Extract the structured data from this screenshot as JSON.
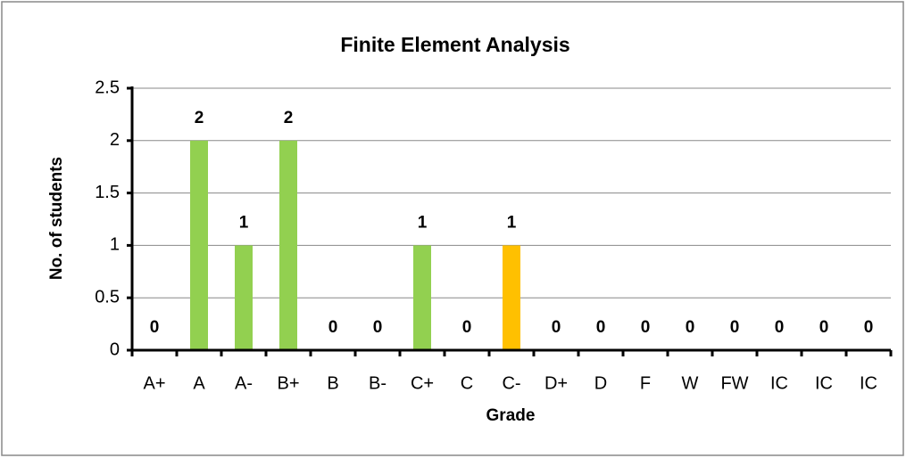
{
  "chart_data": {
    "type": "bar",
    "title": "Finite Element Analysis",
    "x_label": "Grade",
    "y_label": "No. of students",
    "categories": [
      "A+",
      "A",
      "A-",
      "B+",
      "B",
      "B-",
      "C+",
      "C",
      "C-",
      "D+",
      "D",
      "F",
      "W",
      "FW",
      "IC",
      "IC",
      "IC"
    ],
    "values": [
      0,
      2,
      1,
      2,
      0,
      0,
      1,
      0,
      1,
      0,
      0,
      0,
      0,
      0,
      0,
      0,
      0
    ],
    "colors": [
      "#92d050",
      "#92d050",
      "#92d050",
      "#92d050",
      "#92d050",
      "#92d050",
      "#92d050",
      "#92d050",
      "#ffc000",
      "#92d050",
      "#92d050",
      "#92d050",
      "#92d050",
      "#92d050",
      "#92d050",
      "#92d050",
      "#92d050"
    ],
    "ylim": [
      0,
      2.5
    ],
    "yticks": [
      0,
      0.5,
      1,
      1.5,
      2,
      2.5
    ],
    "grid": true
  }
}
